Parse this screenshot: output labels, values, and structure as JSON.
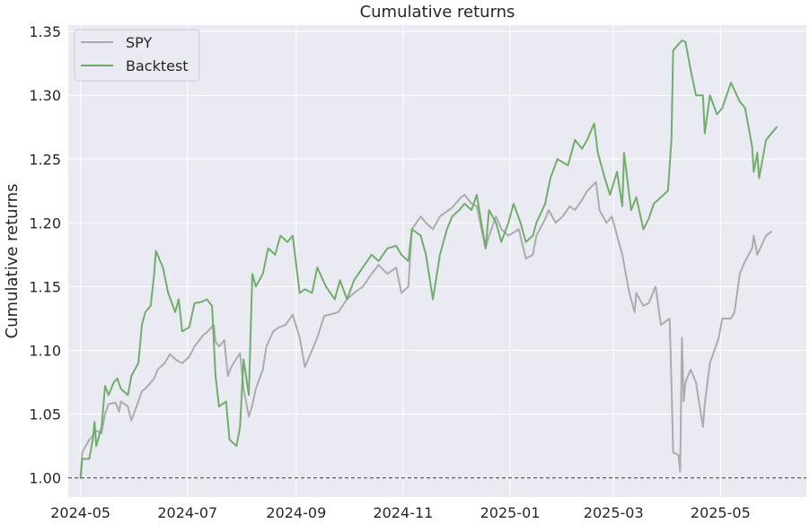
{
  "chart_data": {
    "type": "line",
    "title": "Cumulative returns",
    "xlabel": "",
    "ylabel": "Cumulative returns",
    "ylim": [
      0.985,
      1.355
    ],
    "xlim": [
      "2024-04-24",
      "2025-06-19"
    ],
    "yticks": [
      1.0,
      1.05,
      1.1,
      1.15,
      1.2,
      1.25,
      1.3,
      1.35
    ],
    "ytick_labels": [
      "1.00",
      "1.05",
      "1.10",
      "1.15",
      "1.20",
      "1.25",
      "1.30",
      "1.35"
    ],
    "xticks": [
      "2024-05-01",
      "2024-07-01",
      "2024-09-01",
      "2024-11-01",
      "2025-01-01",
      "2025-03-01",
      "2025-05-01"
    ],
    "xtick_labels": [
      "2024-05",
      "2024-07",
      "2024-09",
      "2024-11",
      "2025-01",
      "2025-03",
      "2025-05"
    ],
    "grid": true,
    "legend_position": "top-left",
    "baseline": 1.0,
    "series": [
      {
        "name": "SPY",
        "color": "#a9a9a9",
        "points": [
          [
            "2024-05-01",
            1.0
          ],
          [
            "2024-05-02",
            1.02
          ],
          [
            "2024-05-06",
            1.03
          ],
          [
            "2024-05-08",
            1.033
          ],
          [
            "2024-05-10",
            1.037
          ],
          [
            "2024-05-13",
            1.035
          ],
          [
            "2024-05-15",
            1.05
          ],
          [
            "2024-05-17",
            1.058
          ],
          [
            "2024-05-21",
            1.059
          ],
          [
            "2024-05-23",
            1.052
          ],
          [
            "2024-05-24",
            1.06
          ],
          [
            "2024-05-28",
            1.056
          ],
          [
            "2024-05-30",
            1.045
          ],
          [
            "2024-06-03",
            1.06
          ],
          [
            "2024-06-05",
            1.068
          ],
          [
            "2024-06-07",
            1.07
          ],
          [
            "2024-06-12",
            1.078
          ],
          [
            "2024-06-14",
            1.085
          ],
          [
            "2024-06-18",
            1.09
          ],
          [
            "2024-06-21",
            1.097
          ],
          [
            "2024-06-25",
            1.092
          ],
          [
            "2024-06-28",
            1.09
          ],
          [
            "2024-07-02",
            1.095
          ],
          [
            "2024-07-05",
            1.103
          ],
          [
            "2024-07-10",
            1.112
          ],
          [
            "2024-07-12",
            1.114
          ],
          [
            "2024-07-16",
            1.12
          ],
          [
            "2024-07-17",
            1.107
          ],
          [
            "2024-07-19",
            1.103
          ],
          [
            "2024-07-22",
            1.108
          ],
          [
            "2024-07-24",
            1.08
          ],
          [
            "2024-07-26",
            1.087
          ],
          [
            "2024-07-31",
            1.098
          ],
          [
            "2024-08-02",
            1.07
          ],
          [
            "2024-08-05",
            1.048
          ],
          [
            "2024-08-07",
            1.057
          ],
          [
            "2024-08-09",
            1.07
          ],
          [
            "2024-08-13",
            1.085
          ],
          [
            "2024-08-15",
            1.103
          ],
          [
            "2024-08-19",
            1.115
          ],
          [
            "2024-08-22",
            1.118
          ],
          [
            "2024-08-26",
            1.12
          ],
          [
            "2024-08-30",
            1.128
          ],
          [
            "2024-09-03",
            1.11
          ],
          [
            "2024-09-06",
            1.087
          ],
          [
            "2024-09-10",
            1.1
          ],
          [
            "2024-09-13",
            1.11
          ],
          [
            "2024-09-17",
            1.127
          ],
          [
            "2024-09-20",
            1.128
          ],
          [
            "2024-09-25",
            1.13
          ],
          [
            "2024-09-30",
            1.14
          ],
          [
            "2024-10-04",
            1.145
          ],
          [
            "2024-10-09",
            1.15
          ],
          [
            "2024-10-14",
            1.16
          ],
          [
            "2024-10-18",
            1.167
          ],
          [
            "2024-10-23",
            1.16
          ],
          [
            "2024-10-28",
            1.165
          ],
          [
            "2024-10-31",
            1.145
          ],
          [
            "2024-11-04",
            1.15
          ],
          [
            "2024-11-06",
            1.195
          ],
          [
            "2024-11-11",
            1.205
          ],
          [
            "2024-11-14",
            1.2
          ],
          [
            "2024-11-18",
            1.195
          ],
          [
            "2024-11-22",
            1.205
          ],
          [
            "2024-11-29",
            1.212
          ],
          [
            "2024-12-04",
            1.22
          ],
          [
            "2024-12-06",
            1.222
          ],
          [
            "2024-12-10",
            1.215
          ],
          [
            "2024-12-13",
            1.213
          ],
          [
            "2024-12-18",
            1.18
          ],
          [
            "2024-12-20",
            1.19
          ],
          [
            "2024-12-24",
            1.205
          ],
          [
            "2024-12-27",
            1.195
          ],
          [
            "2024-12-31",
            1.19
          ],
          [
            "2025-01-06",
            1.195
          ],
          [
            "2025-01-10",
            1.172
          ],
          [
            "2025-01-14",
            1.175
          ],
          [
            "2025-01-16",
            1.19
          ],
          [
            "2025-01-21",
            1.203
          ],
          [
            "2025-01-23",
            1.21
          ],
          [
            "2025-01-27",
            1.2
          ],
          [
            "2025-01-31",
            1.205
          ],
          [
            "2025-02-04",
            1.213
          ],
          [
            "2025-02-07",
            1.21
          ],
          [
            "2025-02-11",
            1.218
          ],
          [
            "2025-02-14",
            1.225
          ],
          [
            "2025-02-19",
            1.232
          ],
          [
            "2025-02-21",
            1.21
          ],
          [
            "2025-02-25",
            1.2
          ],
          [
            "2025-02-28",
            1.205
          ],
          [
            "2025-03-03",
            1.19
          ],
          [
            "2025-03-06",
            1.175
          ],
          [
            "2025-03-10",
            1.145
          ],
          [
            "2025-03-13",
            1.13
          ],
          [
            "2025-03-14",
            1.145
          ],
          [
            "2025-03-18",
            1.135
          ],
          [
            "2025-03-21",
            1.137
          ],
          [
            "2025-03-25",
            1.15
          ],
          [
            "2025-03-28",
            1.12
          ],
          [
            "2025-04-02",
            1.125
          ],
          [
            "2025-04-03",
            1.075
          ],
          [
            "2025-04-04",
            1.02
          ],
          [
            "2025-04-07",
            1.018
          ],
          [
            "2025-04-08",
            1.005
          ],
          [
            "2025-04-09",
            1.11
          ],
          [
            "2025-04-10",
            1.06
          ],
          [
            "2025-04-11",
            1.075
          ],
          [
            "2025-04-14",
            1.085
          ],
          [
            "2025-04-17",
            1.075
          ],
          [
            "2025-04-21",
            1.04
          ],
          [
            "2025-04-22",
            1.058
          ],
          [
            "2025-04-25",
            1.09
          ],
          [
            "2025-04-30",
            1.11
          ],
          [
            "2025-05-02",
            1.125
          ],
          [
            "2025-05-07",
            1.125
          ],
          [
            "2025-05-09",
            1.13
          ],
          [
            "2025-05-12",
            1.16
          ],
          [
            "2025-05-15",
            1.17
          ],
          [
            "2025-05-19",
            1.18
          ],
          [
            "2025-05-20",
            1.19
          ],
          [
            "2025-05-22",
            1.175
          ],
          [
            "2025-05-27",
            1.19
          ],
          [
            "2025-05-30",
            1.193
          ]
        ]
      },
      {
        "name": "Backtest",
        "color": "#6aaa64",
        "points": [
          [
            "2024-05-01",
            1.0
          ],
          [
            "2024-05-02",
            1.015
          ],
          [
            "2024-05-06",
            1.015
          ],
          [
            "2024-05-08",
            1.03
          ],
          [
            "2024-05-09",
            1.044
          ],
          [
            "2024-05-10",
            1.025
          ],
          [
            "2024-05-13",
            1.04
          ],
          [
            "2024-05-15",
            1.072
          ],
          [
            "2024-05-17",
            1.065
          ],
          [
            "2024-05-20",
            1.075
          ],
          [
            "2024-05-22",
            1.078
          ],
          [
            "2024-05-24",
            1.07
          ],
          [
            "2024-05-28",
            1.065
          ],
          [
            "2024-05-30",
            1.08
          ],
          [
            "2024-06-03",
            1.09
          ],
          [
            "2024-06-05",
            1.12
          ],
          [
            "2024-06-07",
            1.13
          ],
          [
            "2024-06-10",
            1.135
          ],
          [
            "2024-06-12",
            1.16
          ],
          [
            "2024-06-13",
            1.178
          ],
          [
            "2024-06-17",
            1.165
          ],
          [
            "2024-06-20",
            1.145
          ],
          [
            "2024-06-24",
            1.13
          ],
          [
            "2024-06-26",
            1.14
          ],
          [
            "2024-06-28",
            1.115
          ],
          [
            "2024-07-02",
            1.118
          ],
          [
            "2024-07-05",
            1.137
          ],
          [
            "2024-07-09",
            1.138
          ],
          [
            "2024-07-12",
            1.14
          ],
          [
            "2024-07-15",
            1.135
          ],
          [
            "2024-07-17",
            1.08
          ],
          [
            "2024-07-19",
            1.056
          ],
          [
            "2024-07-23",
            1.06
          ],
          [
            "2024-07-25",
            1.03
          ],
          [
            "2024-07-29",
            1.025
          ],
          [
            "2024-07-31",
            1.04
          ],
          [
            "2024-08-02",
            1.093
          ],
          [
            "2024-08-05",
            1.065
          ],
          [
            "2024-08-07",
            1.16
          ],
          [
            "2024-08-09",
            1.15
          ],
          [
            "2024-08-13",
            1.16
          ],
          [
            "2024-08-16",
            1.18
          ],
          [
            "2024-08-20",
            1.175
          ],
          [
            "2024-08-23",
            1.19
          ],
          [
            "2024-08-27",
            1.185
          ],
          [
            "2024-08-30",
            1.19
          ],
          [
            "2024-09-03",
            1.145
          ],
          [
            "2024-09-06",
            1.148
          ],
          [
            "2024-09-10",
            1.145
          ],
          [
            "2024-09-13",
            1.165
          ],
          [
            "2024-09-18",
            1.15
          ],
          [
            "2024-09-23",
            1.14
          ],
          [
            "2024-09-26",
            1.155
          ],
          [
            "2024-09-30",
            1.14
          ],
          [
            "2024-10-04",
            1.155
          ],
          [
            "2024-10-09",
            1.165
          ],
          [
            "2024-10-14",
            1.175
          ],
          [
            "2024-10-18",
            1.17
          ],
          [
            "2024-10-23",
            1.18
          ],
          [
            "2024-10-28",
            1.182
          ],
          [
            "2024-10-31",
            1.175
          ],
          [
            "2024-11-04",
            1.17
          ],
          [
            "2024-11-06",
            1.195
          ],
          [
            "2024-11-11",
            1.19
          ],
          [
            "2024-11-14",
            1.175
          ],
          [
            "2024-11-18",
            1.14
          ],
          [
            "2024-11-22",
            1.175
          ],
          [
            "2024-11-26",
            1.195
          ],
          [
            "2024-11-29",
            1.205
          ],
          [
            "2024-12-03",
            1.21
          ],
          [
            "2024-12-06",
            1.215
          ],
          [
            "2024-12-10",
            1.21
          ],
          [
            "2024-12-13",
            1.222
          ],
          [
            "2024-12-18",
            1.18
          ],
          [
            "2024-12-20",
            1.21
          ],
          [
            "2024-12-24",
            1.2
          ],
          [
            "2024-12-27",
            1.185
          ],
          [
            "2024-12-31",
            1.2
          ],
          [
            "2025-01-03",
            1.215
          ],
          [
            "2025-01-07",
            1.2
          ],
          [
            "2025-01-10",
            1.185
          ],
          [
            "2025-01-14",
            1.19
          ],
          [
            "2025-01-16",
            1.2
          ],
          [
            "2025-01-21",
            1.215
          ],
          [
            "2025-01-24",
            1.235
          ],
          [
            "2025-01-28",
            1.25
          ],
          [
            "2025-02-03",
            1.245
          ],
          [
            "2025-02-07",
            1.265
          ],
          [
            "2025-02-11",
            1.258
          ],
          [
            "2025-02-14",
            1.265
          ],
          [
            "2025-02-18",
            1.278
          ],
          [
            "2025-02-20",
            1.255
          ],
          [
            "2025-02-24",
            1.235
          ],
          [
            "2025-02-27",
            1.222
          ],
          [
            "2025-03-03",
            1.24
          ],
          [
            "2025-03-06",
            1.213
          ],
          [
            "2025-03-07",
            1.255
          ],
          [
            "2025-03-11",
            1.21
          ],
          [
            "2025-03-14",
            1.22
          ],
          [
            "2025-03-18",
            1.195
          ],
          [
            "2025-03-21",
            1.203
          ],
          [
            "2025-03-24",
            1.215
          ],
          [
            "2025-03-28",
            1.22
          ],
          [
            "2025-04-01",
            1.225
          ],
          [
            "2025-04-03",
            1.265
          ],
          [
            "2025-04-04",
            1.335
          ],
          [
            "2025-04-07",
            1.34
          ],
          [
            "2025-04-09",
            1.343
          ],
          [
            "2025-04-11",
            1.342
          ],
          [
            "2025-04-14",
            1.32
          ],
          [
            "2025-04-17",
            1.3
          ],
          [
            "2025-04-21",
            1.3
          ],
          [
            "2025-04-22",
            1.27
          ],
          [
            "2025-04-25",
            1.3
          ],
          [
            "2025-04-29",
            1.285
          ],
          [
            "2025-05-02",
            1.29
          ],
          [
            "2025-05-07",
            1.31
          ],
          [
            "2025-05-12",
            1.295
          ],
          [
            "2025-05-15",
            1.29
          ],
          [
            "2025-05-19",
            1.26
          ],
          [
            "2025-05-20",
            1.24
          ],
          [
            "2025-05-22",
            1.255
          ],
          [
            "2025-05-23",
            1.235
          ],
          [
            "2025-05-27",
            1.265
          ],
          [
            "2025-05-30",
            1.27
          ],
          [
            "2025-06-02",
            1.275
          ]
        ]
      }
    ]
  }
}
